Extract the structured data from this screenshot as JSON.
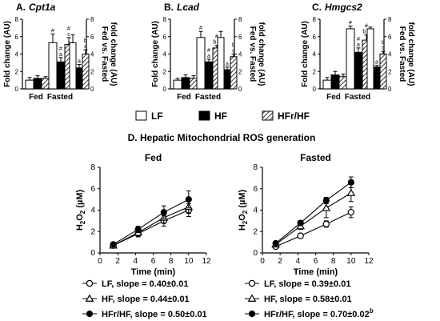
{
  "figure": {
    "panel_top": [
      {
        "letter": "A.",
        "gene": "Cpt1a",
        "ylabel_left": "Fold change (AU)",
        "ylabel_right_1": "Fed vs. Fasted",
        "ylabel_right_2": "fold change (AU)",
        "group_fed": "Fed",
        "group_fasted": "Fasted"
      },
      {
        "letter": "B.",
        "gene": "Lcad",
        "ylabel_left": "Fold change (AU)",
        "ylabel_right_1": "Fed vs. Fasted",
        "ylabel_right_2": "fold change (AU)",
        "group_fed": "Fed",
        "group_fasted": "Fasted"
      },
      {
        "letter": "C.",
        "gene": "Hmgcs2",
        "ylabel_left": "Fold change (AU)",
        "ylabel_right_1": "Fed vs. Fasted",
        "ylabel_right_2": "fold change (AU)",
        "group_fed": "Fed",
        "group_fasted": "Fasted"
      }
    ],
    "legend_bars": [
      "LF",
      "HF",
      "HFr/HF"
    ],
    "panel_d_title": "D. Hepatic Mitochondrial ROS generation"
  },
  "chart_data": [
    {
      "type": "bar",
      "title": "Cpt1a",
      "categories": [
        "Fed",
        "Fasted",
        "Fed vs. Fasted"
      ],
      "series": [
        {
          "name": "LF",
          "values": [
            1.0,
            5.3,
            5.3
          ],
          "errors": [
            0.3,
            1.0,
            0.9
          ]
        },
        {
          "name": "HF",
          "values": [
            1.2,
            3.1,
            2.4
          ],
          "errors": [
            0.3,
            0.5,
            0.4
          ]
        },
        {
          "name": "HFr/HF",
          "values": [
            1.2,
            5.1,
            4.0
          ],
          "errors": [
            0.2,
            0.8,
            0.5
          ]
        }
      ],
      "annotations": [
        [
          "",
          "",
          ""
        ],
        [
          "#",
          "#\na",
          "#\nc"
        ],
        [
          "",
          "a",
          "b\nc"
        ]
      ],
      "ylim": [
        0,
        8
      ],
      "yticks": [
        0,
        2,
        4,
        6,
        8
      ],
      "ylim_right": [
        0,
        8
      ],
      "yticks_right": [
        0,
        2,
        4,
        6,
        8
      ],
      "xlabel": "",
      "ylabel": "Fold change (AU)"
    },
    {
      "type": "bar",
      "title": "Lcad",
      "categories": [
        "Fed",
        "Fasted",
        "Fed vs. Fasted"
      ],
      "series": [
        {
          "name": "LF",
          "values": [
            1.0,
            5.9,
            5.9
          ],
          "errors": [
            0.2,
            0.7,
            0.7
          ]
        },
        {
          "name": "HF",
          "values": [
            1.3,
            3.1,
            2.2
          ],
          "errors": [
            0.3,
            0.3,
            0.3
          ]
        },
        {
          "name": "HFr/HF",
          "values": [
            1.2,
            4.7,
            3.7
          ],
          "errors": [
            0.3,
            0.3,
            0.3
          ]
        }
      ],
      "annotations": [
        [
          "",
          "",
          ""
        ],
        [
          "#",
          "#\na",
          "#\nb c"
        ],
        [
          "",
          "a",
          "b\nc"
        ]
      ],
      "ylim": [
        0,
        8
      ],
      "yticks": [
        0,
        2,
        4,
        6,
        8
      ],
      "ylim_right": [
        0,
        8
      ],
      "yticks_right": [
        0,
        2,
        4,
        6,
        8
      ],
      "xlabel": "",
      "ylabel": "Fold change (AU)"
    },
    {
      "type": "bar",
      "title": "Hmgcs2",
      "categories": [
        "Fed",
        "Fasted",
        "Fed vs. Fasted"
      ],
      "series": [
        {
          "name": "LF",
          "values": [
            1.0,
            6.9,
            6.9
          ],
          "errors": [
            0.3,
            0.3,
            0.2
          ]
        },
        {
          "name": "HF",
          "values": [
            1.6,
            4.2,
            2.5
          ],
          "errors": [
            0.4,
            0.5,
            0.2
          ]
        },
        {
          "name": "HFr/HF",
          "values": [
            1.4,
            5.6,
            4.0
          ],
          "errors": [
            0.3,
            0.6,
            0.3
          ]
        }
      ],
      "annotations": [
        [
          "",
          "",
          ""
        ],
        [
          "#",
          "#\na",
          "#\nb c"
        ],
        [
          "",
          "a",
          "b\nc"
        ]
      ],
      "ylim": [
        0,
        8
      ],
      "yticks": [
        0,
        2,
        4,
        6,
        8
      ],
      "ylim_right": [
        0,
        8
      ],
      "yticks_right": [
        0,
        2,
        4,
        6,
        8
      ],
      "xlabel": "",
      "ylabel": "Fold change (AU)"
    },
    {
      "type": "line",
      "title": "Fed",
      "xlabel": "Time (min)",
      "ylabel": "H2O2 (µM)",
      "xlim": [
        0,
        12
      ],
      "xticks": [
        0,
        2,
        4,
        6,
        8,
        10,
        12
      ],
      "ylim": [
        0,
        8
      ],
      "yticks": [
        0,
        2,
        4,
        6,
        8
      ],
      "x": [
        1.5,
        4.3,
        7.2,
        10
      ],
      "series": [
        {
          "name": "LF, slope = 0.40±0.01",
          "marker": "open-circle",
          "values": [
            0.7,
            1.8,
            3.0,
            4.0
          ],
          "errors": [
            0.2,
            0.3,
            0.5,
            0.6
          ]
        },
        {
          "name": "HF, slope = 0.44±0.01",
          "marker": "open-triangle",
          "values": [
            0.7,
            1.9,
            3.3,
            4.3
          ],
          "errors": [
            0.2,
            0.3,
            0.5,
            0.6
          ]
        },
        {
          "name": "HFr/HF, slope = 0.50±0.01",
          "marker": "filled-circle",
          "values": [
            0.8,
            2.2,
            3.8,
            5.0
          ],
          "errors": [
            0.2,
            0.3,
            0.6,
            0.8
          ]
        }
      ],
      "grid": false,
      "legend": "bottom"
    },
    {
      "type": "line",
      "title": "Fasted",
      "xlabel": "Time (min)",
      "ylabel": "H2O2 (µM)",
      "xlim": [
        0,
        12
      ],
      "xticks": [
        0,
        2,
        4,
        6,
        8,
        10,
        12
      ],
      "ylim": [
        0,
        8
      ],
      "yticks": [
        0,
        2,
        4,
        6,
        8
      ],
      "x": [
        1.5,
        4.3,
        7.2,
        10
      ],
      "series": [
        {
          "name": "LF, slope = 0.39±0.01",
          "marker": "open-circle",
          "values": [
            0.6,
            1.6,
            2.7,
            3.8
          ],
          "errors": [
            0.1,
            0.2,
            0.3,
            0.5
          ]
        },
        {
          "name": "HF, slope = 0.58±0.01",
          "marker": "open-triangle",
          "values": [
            0.8,
            2.5,
            4.2,
            5.6
          ],
          "errors": [
            0.2,
            0.3,
            0.9,
            0.8
          ]
        },
        {
          "name": "HFr/HF, slope = 0.70±0.02",
          "superscript": "b",
          "marker": "filled-circle",
          "values": [
            0.9,
            2.8,
            4.9,
            6.6
          ],
          "errors": [
            0.1,
            0.2,
            0.3,
            0.5
          ]
        }
      ],
      "grid": false,
      "legend": "bottom"
    }
  ]
}
